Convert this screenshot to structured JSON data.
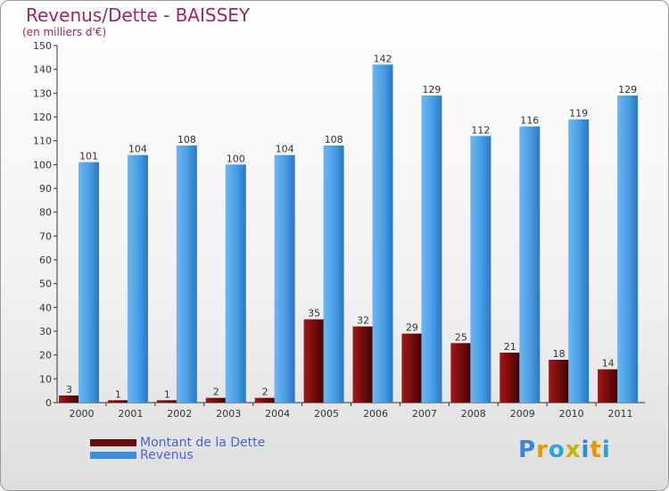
{
  "header": {
    "title": "Revenus/Dette - BAISSEY",
    "subtitle": "(en milliers d'€)"
  },
  "legend": {
    "items": [
      {
        "label": "Montant de la Dette",
        "color": "#6b0a0a"
      },
      {
        "label": "Revenus",
        "color": "#3d8fd9"
      }
    ]
  },
  "logo": {
    "text": "Proxiti",
    "letters": [
      "P",
      "r",
      "o",
      "x",
      "i",
      "t",
      "i"
    ],
    "colors": [
      "#3a86d6",
      "#f39200",
      "#2aa3d8",
      "#c8b400",
      "#3a86d6",
      "#f39200",
      "#2aa3d8"
    ]
  },
  "chart_data": {
    "type": "bar",
    "categories": [
      "2000",
      "2001",
      "2002",
      "2003",
      "2004",
      "2005",
      "2006",
      "2007",
      "2008",
      "2009",
      "2010",
      "2011"
    ],
    "series": [
      {
        "name": "Montant de la Dette",
        "color": "#6b0a0a",
        "values": [
          3,
          1,
          1,
          2,
          2,
          35,
          32,
          29,
          25,
          21,
          18,
          14
        ]
      },
      {
        "name": "Revenus",
        "color": "#3d8fd9",
        "values": [
          101,
          104,
          108,
          100,
          104,
          108,
          142,
          129,
          112,
          116,
          119,
          129
        ]
      }
    ],
    "yticks": [
      0,
      10,
      20,
      30,
      40,
      50,
      60,
      70,
      80,
      90,
      100,
      110,
      120,
      130,
      140,
      150
    ],
    "ylim": [
      0,
      150
    ],
    "grid": false,
    "legend_position": "bottom-left"
  }
}
